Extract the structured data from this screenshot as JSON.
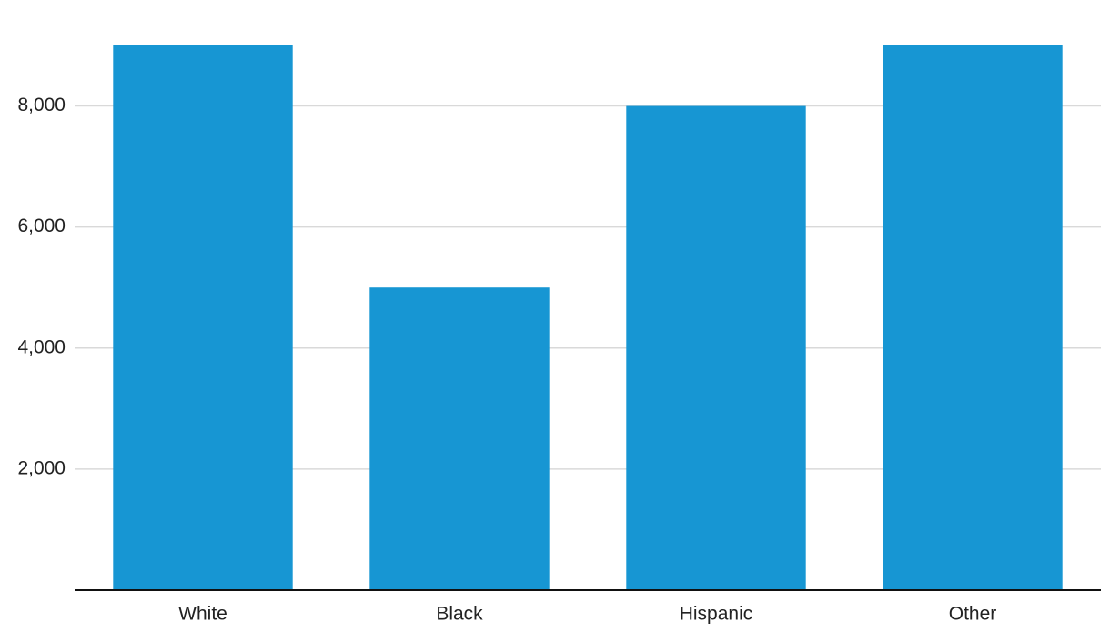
{
  "chart_data": {
    "type": "bar",
    "categories": [
      "White",
      "Black",
      "Hispanic",
      "Other"
    ],
    "values": [
      9000,
      5000,
      8000,
      9000
    ],
    "color": "#1796d3",
    "ylim": [
      0,
      9000
    ],
    "yticks": [
      {
        "value": 2000,
        "label": "2,000"
      },
      {
        "value": 4000,
        "label": "4,000"
      },
      {
        "value": 6000,
        "label": "6,000"
      },
      {
        "value": 8000,
        "label": "8,000"
      }
    ],
    "grid": true
  }
}
